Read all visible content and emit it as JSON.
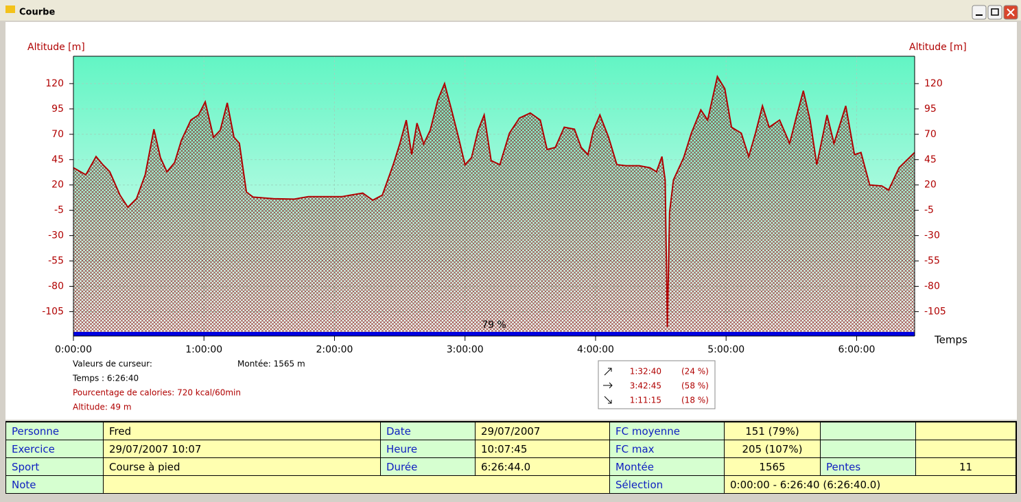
{
  "window": {
    "title": "Courbe"
  },
  "chart_data": {
    "type": "area",
    "ylabel": "Altitude [m]",
    "xlabel": "Temps",
    "color": "#b00000",
    "x": [
      0,
      342,
      624,
      810,
      1002,
      1284,
      1500,
      1740,
      1980,
      2220,
      2400,
      2580,
      2790,
      2976,
      3240,
      3450,
      3636,
      3864,
      4050,
      4242,
      4428,
      4578,
      4770,
      4956,
      5520,
      6090,
      6480,
      7410,
      7980,
      8256,
      8520,
      8820,
      9000,
      9180,
      9330,
      9474,
      9660,
      9840,
      10050,
      10236,
      10428,
      10620,
      10800,
      10980,
      11160,
      11328,
      11520,
      11760,
      12024,
      12300,
      12600,
      12876,
      13062,
      13290,
      13536,
      13818,
      14004,
      14190,
      14340,
      14520,
      14760,
      14988,
      15240,
      15600,
      15900,
      16080,
      16230,
      16320,
      16380,
      16440,
      16548,
      16830,
      17040,
      17304,
      17490,
      17760,
      17964,
      18150,
      18420,
      18624,
      18810,
      19002,
      19188,
      19476,
      19752,
      19944,
      20130,
      20316,
      20502,
      20784,
      20976,
      21300,
      21540,
      21720,
      21960,
      22296,
      22482,
      22770,
      23200
    ],
    "values": [
      37,
      30,
      48,
      40,
      33,
      10,
      -2,
      6.5,
      30,
      75,
      47,
      33,
      42,
      64,
      84,
      89,
      102,
      67,
      74,
      101,
      67,
      61,
      13,
      8,
      6.5,
      6,
      8.5,
      8.5,
      12,
      5,
      10,
      40,
      60.5,
      84,
      50,
      81,
      60.5,
      74,
      104,
      120,
      94,
      67,
      40,
      47,
      74,
      89,
      44,
      40,
      71,
      86,
      91,
      84,
      55,
      57,
      77,
      75,
      57,
      50,
      74,
      89,
      67,
      40,
      39,
      39,
      37,
      33,
      48,
      25,
      -120,
      -7,
      25,
      47,
      71,
      94,
      84,
      127,
      115,
      77,
      71,
      48,
      71,
      98,
      77,
      84,
      61,
      88,
      113,
      84,
      40,
      89,
      61,
      98,
      50,
      52,
      20,
      19,
      15,
      37,
      52
    ],
    "xlim": [
      0,
      23200
    ],
    "xticks": [
      {
        "value": 0,
        "label": "0:00:00"
      },
      {
        "value": 3600,
        "label": "1:00:00"
      },
      {
        "value": 7200,
        "label": "2:00:00"
      },
      {
        "value": 10800,
        "label": "3:00:00"
      },
      {
        "value": 14400,
        "label": "4:00:00"
      },
      {
        "value": 18000,
        "label": "5:00:00"
      },
      {
        "value": 21600,
        "label": "6:00:00"
      }
    ],
    "ylim": [
      -125,
      147
    ],
    "yticks": [
      120,
      95,
      70,
      45,
      20,
      -5,
      -30,
      -55,
      -80,
      -105
    ],
    "grid": true,
    "annotations": [
      "79 %"
    ]
  },
  "cursor": {
    "title": "Valeurs de curseur:",
    "climb": "Montée: 1565 m",
    "time": "Temps : 6:26:40",
    "calories": "Pourcentage de calories: 720 kcal/60min",
    "altitude": "Altitude: 49 m"
  },
  "slopes": [
    {
      "time": "1:32:40",
      "share": "(24 %)"
    },
    {
      "time": "3:42:45",
      "share": "(58 %)"
    },
    {
      "time": "1:11:15",
      "share": "(18 %)"
    }
  ],
  "table": {
    "rows": [
      [
        "Personne",
        "Fred",
        "Date",
        "29/07/2007",
        "FC moyenne",
        "151 (79%)"
      ],
      [
        "Exercice",
        "29/07/2007 10:07",
        "Heure",
        "10:07:45",
        "FC max",
        "205 (107%)"
      ],
      [
        "Sport",
        "Course à pied",
        "Durée",
        "6:26:44.0",
        "Montée",
        "1565",
        "Pentes",
        "11"
      ],
      [
        "Note",
        "Sélection",
        "0:00:00 - 6:26:40 (6:26:40.0)"
      ]
    ]
  }
}
